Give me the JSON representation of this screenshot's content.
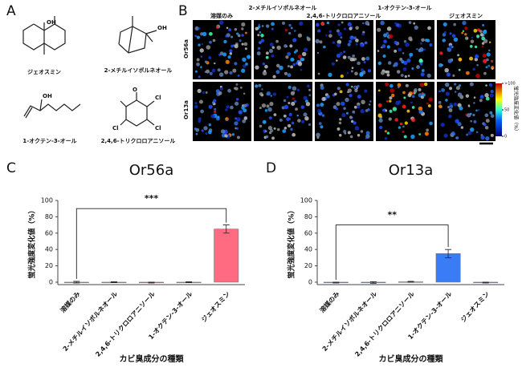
{
  "panel_a": {
    "letter": "A",
    "compounds": [
      "ジェオスミン",
      "2-メチルイソボルネオール",
      "1-オクテン-3-オール",
      "2,4,6-トリクロロアニソール"
    ],
    "atom_labels": [
      "OH",
      "OH",
      "OH",
      "O",
      "Cl",
      "Cl",
      "Cl"
    ]
  },
  "panel_b": {
    "letter": "B",
    "columns": [
      "溶媒のみ",
      "2-メチルイソボルネオール",
      "2,4,6-トリクロロアニソール",
      "1-オクテン-3-オール",
      "ジェオスミン"
    ],
    "rows": [
      "Or56a",
      "Or13a"
    ],
    "colorbar": {
      "label": "蛍光強度変化値（%）",
      "ticks": [
        {
          "value": 100,
          "label": ">100"
        },
        50,
        0
      ]
    }
  },
  "chart_data": [
    {
      "type": "bar",
      "letter": "C",
      "title": "Or56a",
      "y_label": "蛍光強度変化値（%）",
      "x_label": "カビ臭成分の種類",
      "categories": [
        "溶媒のみ",
        "2-メチルイソボルネオール",
        "2,4,6-トリクロロアニソール",
        "1-オクテン-3-オール",
        "ジェオスミン"
      ],
      "values": [
        0,
        0,
        -0.5,
        0,
        65
      ],
      "errors": [
        1,
        0.5,
        0.5,
        0.5,
        5
      ],
      "colors": [
        "#aaaaaa",
        "#aaaaaa",
        "#e8607a",
        "#aaaaaa",
        "#ff6b81"
      ],
      "ylim": [
        -3,
        100
      ],
      "yticks": [
        0,
        20,
        40,
        60,
        80,
        100
      ],
      "annotation": {
        "text": "***",
        "from": 0,
        "to": 4,
        "at": 90
      }
    },
    {
      "type": "bar",
      "letter": "D",
      "title": "Or13a",
      "y_label": "蛍光強度変化値（%）",
      "x_label": "カビ臭成分の種類",
      "categories": [
        "溶媒のみ",
        "2-メチルイソボルネオール",
        "2,4,6-トリクロロアニソール",
        "1-オクテン-3-オール",
        "ジェオスミン"
      ],
      "values": [
        -0.5,
        -0.5,
        0.5,
        35,
        -0.5
      ],
      "errors": [
        0.5,
        1,
        0.5,
        5,
        0.5
      ],
      "colors": [
        "#6a8fd8",
        "#6a8fd8",
        "#aaaaaa",
        "#3a7cf5",
        "#6a8fd8"
      ],
      "ylim": [
        -3,
        100
      ],
      "yticks": [
        0,
        20,
        40,
        60,
        80,
        100
      ],
      "annotation": {
        "text": "**",
        "from": 0,
        "to": 3,
        "at": 70
      }
    }
  ]
}
